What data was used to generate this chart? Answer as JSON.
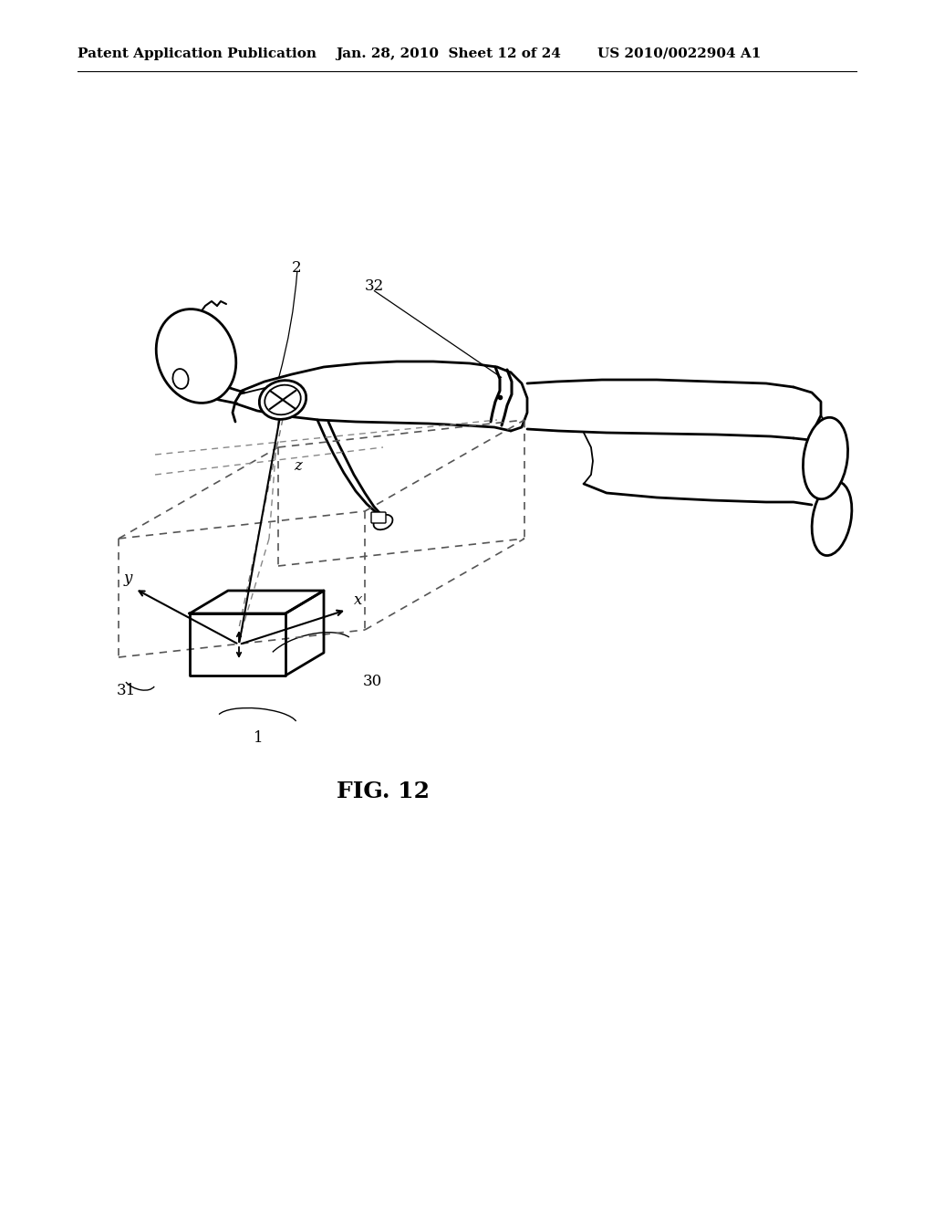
{
  "bg_color": "#ffffff",
  "header_left": "Patent Application Publication",
  "header_mid": "Jan. 28, 2010  Sheet 12 of 24",
  "header_right": "US 2010/0022904 A1",
  "caption": "FIG. 12",
  "header_fontsize": 11,
  "caption_fontsize": 18
}
